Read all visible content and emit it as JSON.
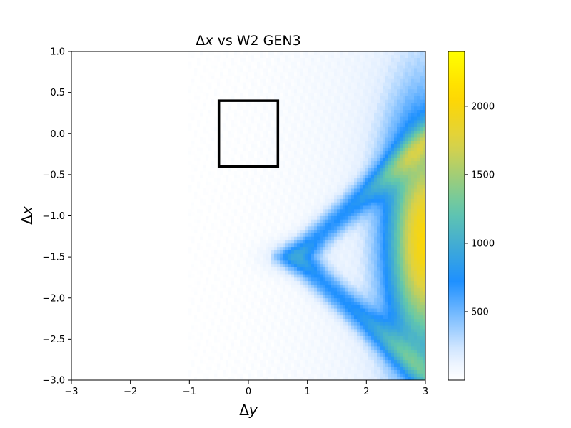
{
  "chart_data": {
    "type": "heatmap",
    "title": "Δx vs W2 GEN3",
    "title_parts": [
      "Δ",
      "x",
      " vs W2 GEN3"
    ],
    "xlabel": "Δy",
    "xlabel_parts": [
      "Δ",
      "y"
    ],
    "ylabel": "Δx",
    "ylabel_parts": [
      "Δ",
      "x"
    ],
    "xlim": [
      -3,
      3
    ],
    "ylim": [
      -3,
      1
    ],
    "x_ticks": [
      -3,
      -2,
      -1,
      0,
      1,
      2,
      3
    ],
    "x_tick_labels": [
      "−3",
      "−2",
      "−1",
      "0",
      "1",
      "2",
      "3"
    ],
    "y_ticks": [
      1.0,
      0.5,
      0.0,
      -0.5,
      -1.0,
      -1.5,
      -2.0,
      -2.5,
      -3.0
    ],
    "y_tick_labels": [
      "1.0",
      "0.5",
      "0.0",
      "−0.5",
      "−1.0",
      "−1.5",
      "−2.0",
      "−2.5",
      "−3.0"
    ],
    "colorbar": {
      "range": [
        0,
        2400
      ],
      "ticks": [
        500,
        1000,
        1500,
        2000
      ],
      "tick_labels": [
        "500",
        "1000",
        "1500",
        "2000"
      ],
      "colors": [
        "#ffffff",
        "#1e90ff",
        "#ffd700",
        "#ffff00"
      ]
    },
    "density_model": {
      "description_of_structure": "counts are zero for Δy < -1; low density grows toward Δy = 3; a blue branch splits around Δx = -1.5, Δy ≈ 0.8; maximum near Δy = 3, Δx ≈ -1.3",
      "empty_region_x_max": -1.0,
      "peak_value": 2400,
      "fork_point": [
        0.8,
        -1.5
      ]
    },
    "annotation_box": {
      "x_range": [
        -0.5,
        0.5
      ],
      "y_range": [
        -0.4,
        0.4
      ],
      "color": "#000000"
    },
    "grid": false,
    "legend": "none"
  }
}
